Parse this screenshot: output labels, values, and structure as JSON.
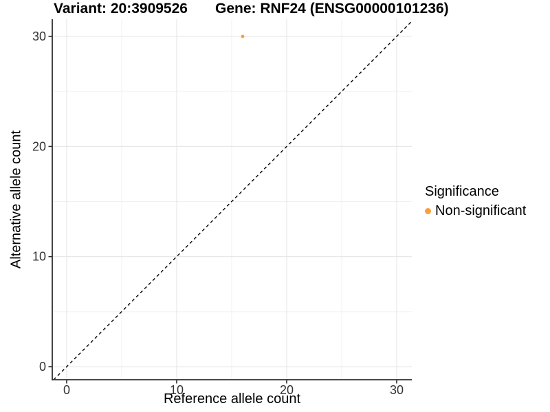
{
  "titles": {
    "variant": "Variant: 20:3909526",
    "gene": "Gene: RNF24 (ENSG00000101236)"
  },
  "legend": {
    "title": "Significance",
    "items": [
      {
        "label": "Non-significant",
        "color": "#F9A039"
      }
    ]
  },
  "chart_data": {
    "type": "scatter",
    "title": "Variant: 20:3909526 | Gene: RNF24 (ENSG00000101236)",
    "xlabel": "Reference allele count",
    "ylabel": "Alternative allele count",
    "xlim": [
      -1.3,
      31.4
    ],
    "ylim": [
      -1.2,
      31.5
    ],
    "x_ticks": [
      0,
      10,
      20,
      30
    ],
    "y_ticks": [
      0,
      10,
      20,
      30
    ],
    "x_minor_ticks": [
      5,
      15,
      25
    ],
    "y_minor_ticks": [
      5,
      15,
      25
    ],
    "grid": "major+minor",
    "legend_position": "right",
    "series": [
      {
        "name": "Non-significant",
        "color": "#F9A039",
        "marker": "circle",
        "points": [
          {
            "x": 16,
            "y": 30
          }
        ]
      }
    ],
    "reference_line": {
      "type": "identity y=x",
      "style": "dashed",
      "color": "#000000"
    }
  },
  "style": {
    "background": "#ffffff",
    "axis_color": "#2e2e2e",
    "tick_label_color": "#333333",
    "grid_major_color": "#e5e5e5",
    "grid_minor_color": "#f1f1f1"
  }
}
